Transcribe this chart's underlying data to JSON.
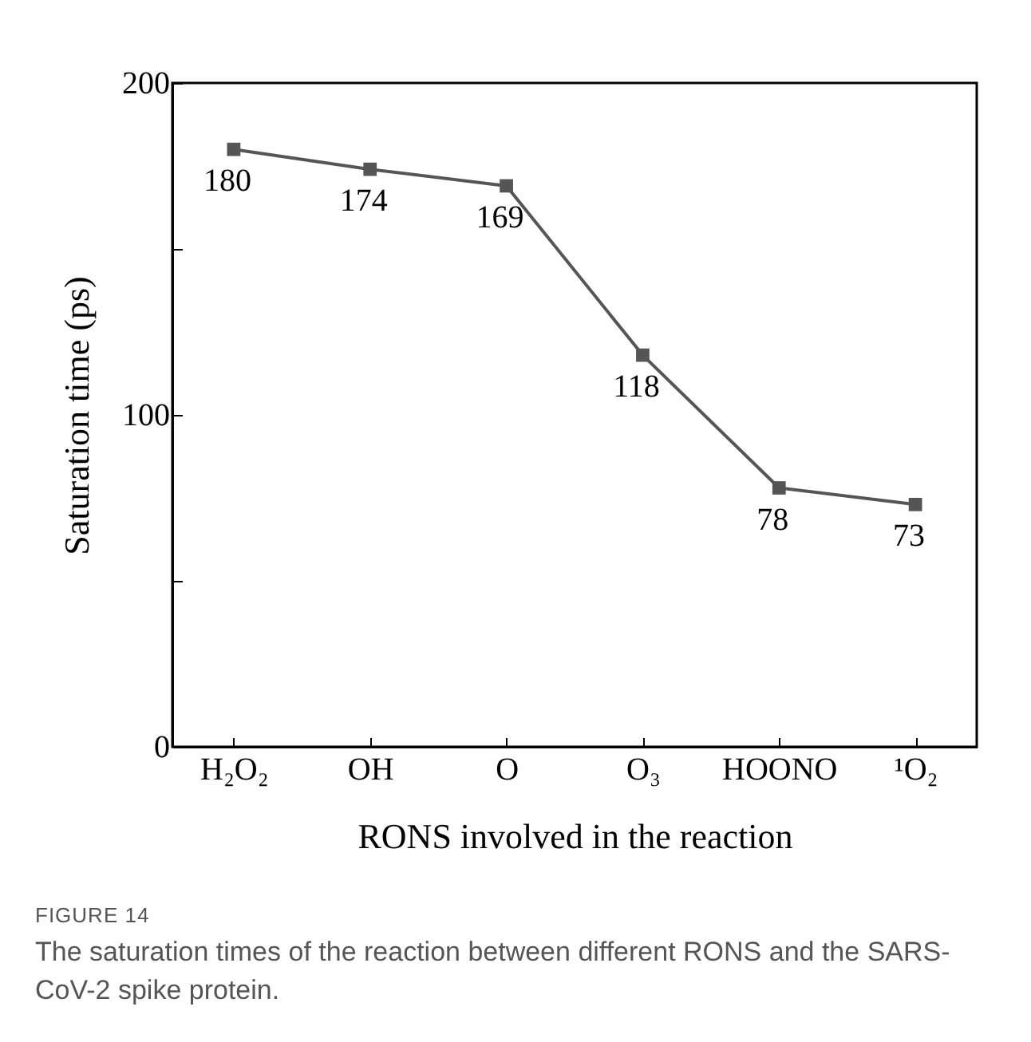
{
  "chart_data": {
    "type": "line",
    "xlabel": "RONS involved in the reaction",
    "ylabel": "Saturation time (ps)",
    "categories": [
      "H₂O₂",
      "OH",
      "O",
      "O₃",
      "HOONO",
      "¹O₂"
    ],
    "series": [
      {
        "color": "#555555",
        "values": [
          180,
          174,
          169,
          118,
          78,
          73
        ]
      }
    ],
    "ylim": [
      0,
      200
    ],
    "yticks": [
      0,
      {
        "value": 50,
        "label": null
      },
      100,
      {
        "value": 150,
        "label": null
      },
      200
    ],
    "data_labels": true,
    "marker": "square",
    "line_style": "solid",
    "annotations": [
      "FIGURE 14",
      "The saturation times of the reaction between different RONS and the SARS-CoV-2 spike protein."
    ]
  }
}
